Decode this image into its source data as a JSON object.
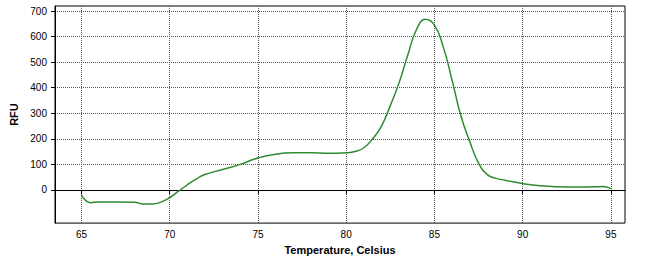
{
  "chart_data": {
    "type": "line",
    "x_label": "Temperature, Celsius",
    "y_label": "RFU",
    "x": [
      65,
      65.5,
      66,
      67,
      68,
      68.5,
      69,
      69.5,
      70,
      70.5,
      71,
      71.5,
      72,
      73,
      74,
      75,
      76,
      77,
      78,
      79,
      80,
      80.5,
      81,
      81.5,
      82,
      82.5,
      83,
      83.5,
      84,
      84.5,
      85,
      85.5,
      86,
      86.5,
      87,
      87.5,
      88,
      88.5,
      89,
      90,
      91,
      92,
      93,
      94,
      94.5,
      95
    ],
    "values": [
      -20,
      -50,
      -47,
      -47,
      -48,
      -55,
      -55,
      -48,
      -30,
      -5,
      20,
      42,
      60,
      80,
      100,
      125,
      140,
      145,
      145,
      143,
      145,
      150,
      165,
      200,
      250,
      330,
      420,
      530,
      630,
      668,
      645,
      560,
      430,
      290,
      190,
      105,
      60,
      45,
      38,
      25,
      16,
      12,
      11,
      12,
      13,
      5
    ],
    "color": "#2e8b2e",
    "xlim": [
      63.5,
      95.8
    ],
    "xticks": [
      65,
      70,
      75,
      80,
      85,
      90,
      95
    ],
    "ylim": [
      -130,
      720
    ],
    "yticks": [
      0,
      100,
      200,
      300,
      400,
      500,
      600,
      700
    ],
    "grid": true
  }
}
